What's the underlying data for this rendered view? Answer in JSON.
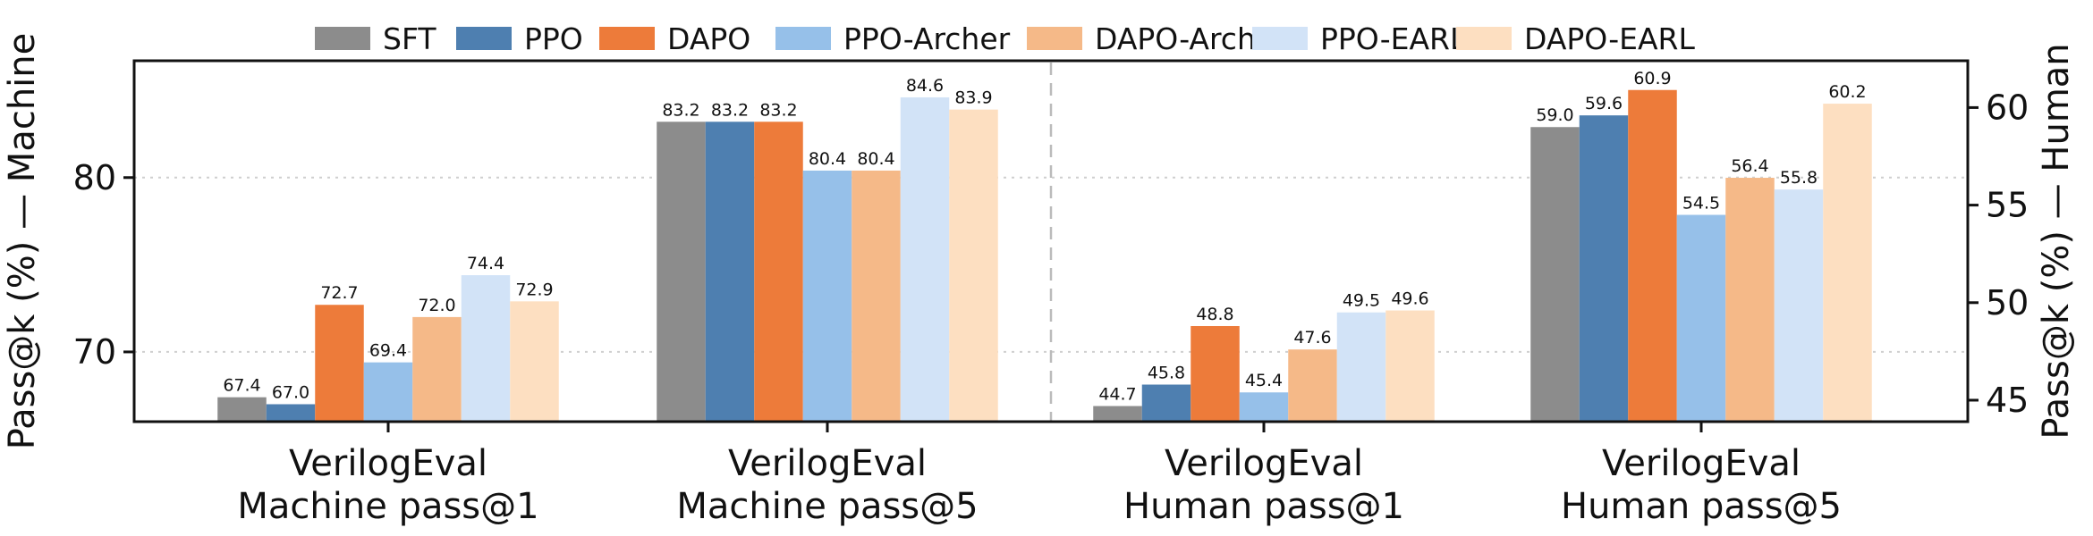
{
  "chart_data": {
    "type": "bar",
    "categories": [
      [
        "VerilogEval",
        "Machine pass@1"
      ],
      [
        "VerilogEval",
        "Machine pass@5"
      ],
      [
        "VerilogEval",
        "Human pass@1"
      ],
      [
        "VerilogEval",
        "Human pass@5"
      ]
    ],
    "category_axis": [
      "left",
      "left",
      "right",
      "right"
    ],
    "series": [
      {
        "name": "SFT",
        "color": "#8c8c8c",
        "values": [
          67.4,
          83.2,
          44.7,
          59.0
        ]
      },
      {
        "name": "PPO",
        "color": "#4e7fb0",
        "values": [
          67.0,
          83.2,
          45.8,
          59.6
        ]
      },
      {
        "name": "DAPO",
        "color": "#ed7b3a",
        "values": [
          72.7,
          83.2,
          48.8,
          60.9
        ]
      },
      {
        "name": "PPO-Archer",
        "color": "#96c0e9",
        "values": [
          69.4,
          80.4,
          45.4,
          54.5
        ]
      },
      {
        "name": "DAPO-Archer",
        "color": "#f5b988",
        "values": [
          72.0,
          80.4,
          47.6,
          56.4
        ]
      },
      {
        "name": "PPO-EARL",
        "color": "#d2e3f7",
        "values": [
          74.4,
          84.6,
          49.5,
          55.8
        ]
      },
      {
        "name": "DAPO-EARL",
        "color": "#fddfc1",
        "values": [
          72.9,
          83.9,
          49.6,
          60.2
        ]
      }
    ],
    "y_left": {
      "label": "Pass@k (%) — Machine",
      "ylim": [
        66.0,
        86.7
      ],
      "ticks": [
        70,
        80
      ]
    },
    "y_right": {
      "label": "Pass@k (%) — Human",
      "ylim": [
        43.9,
        62.4
      ],
      "ticks": [
        45,
        50,
        55,
        60
      ]
    },
    "grid": "horizontal dotted",
    "divider": "dashed vertical line between Machine and Human groups",
    "legend_position": "top"
  }
}
